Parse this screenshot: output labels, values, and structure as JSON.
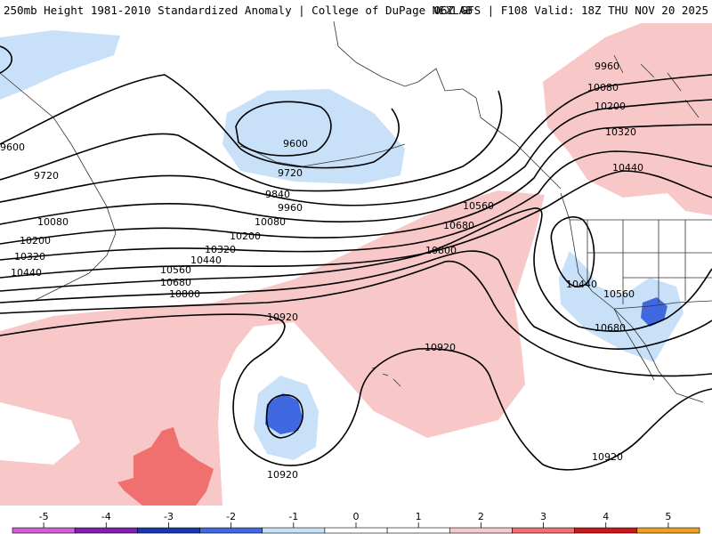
{
  "header": {
    "title": "250mb Height 1981-2010 Standardized Anomaly | College of DuPage NEXLAB",
    "run_info": "06Z GFS | F108 Valid: 18Z THU NOV 20 2025"
  },
  "contour_labels": {
    "l9960_ne": "9960",
    "l10080_ne": "10080",
    "l10200_ne": "10200",
    "l10320_ne": "10320",
    "l10440_ne": "10440",
    "l9600_w": "9600",
    "l9720_w": "9720",
    "l10080_w": "10080",
    "l10200_w": "10200",
    "l10320_w": "10320",
    "l10440_w": "10440",
    "l9600_c": "9600",
    "l9720_c": "9720",
    "l9840_c": "9840",
    "l9960_c": "9960",
    "l10080_c": "10080",
    "l10200_c": "10200",
    "l10320_c": "10320",
    "l10440_c": "10440",
    "l10560_c": "10560",
    "l10680_c": "10680",
    "l10800_c": "10800",
    "l10560_e": "10560",
    "l10680_e": "10680",
    "l10800_e": "10800",
    "l10920_n": "10920",
    "l10920_ce": "10920",
    "l10920_sw": "10920",
    "l10920_se": "10920",
    "l10440_sw": "10440",
    "l10560_sw": "10560",
    "l10680_sw": "10680"
  },
  "legend": {
    "ticks": [
      "-5",
      "-4",
      "-3",
      "-2",
      "-1",
      "0",
      "1",
      "2",
      "3",
      "4",
      "5"
    ],
    "colors": [
      "#d060d8",
      "#8020b0",
      "#1838b0",
      "#4068e0",
      "#c8e0f8",
      "#ffffff",
      "#ffffff",
      "#f8c8c8",
      "#f07070",
      "#c81818",
      "#f0a020"
    ]
  },
  "colors": {
    "neg_weak": "#c8e0f8",
    "neg_mod": "#4068e0",
    "pos_weak": "#f8c8c8",
    "pos_mod": "#f07070",
    "contour": "#000000",
    "border": "#333333"
  }
}
